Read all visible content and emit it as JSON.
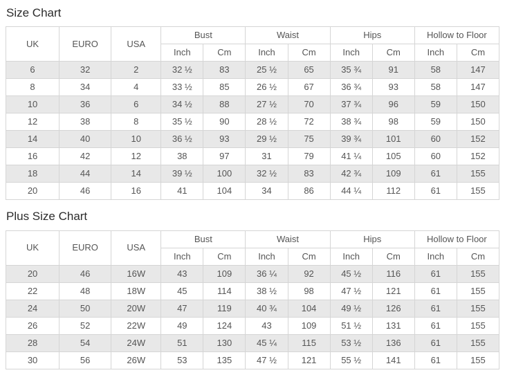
{
  "size_chart": {
    "title": "Size Chart",
    "base_headers": [
      "UK",
      "EURO",
      "USA"
    ],
    "col_groups": [
      "Bust",
      "Waist",
      "Hips",
      "Hollow to Floor"
    ],
    "unit_headers": [
      "Inch",
      "Cm"
    ],
    "rows": [
      [
        "6",
        "32",
        "2",
        "32 ½",
        "83",
        "25 ½",
        "65",
        "35 ¾",
        "91",
        "58",
        "147"
      ],
      [
        "8",
        "34",
        "4",
        "33 ½",
        "85",
        "26 ½",
        "67",
        "36 ¾",
        "93",
        "58",
        "147"
      ],
      [
        "10",
        "36",
        "6",
        "34 ½",
        "88",
        "27 ½",
        "70",
        "37 ¾",
        "96",
        "59",
        "150"
      ],
      [
        "12",
        "38",
        "8",
        "35 ½",
        "90",
        "28 ½",
        "72",
        "38 ¾",
        "98",
        "59",
        "150"
      ],
      [
        "14",
        "40",
        "10",
        "36 ½",
        "93",
        "29 ½",
        "75",
        "39 ¾",
        "101",
        "60",
        "152"
      ],
      [
        "16",
        "42",
        "12",
        "38",
        "97",
        "31",
        "79",
        "41 ¼",
        "105",
        "60",
        "152"
      ],
      [
        "18",
        "44",
        "14",
        "39 ½",
        "100",
        "32 ½",
        "83",
        "42 ¾",
        "109",
        "61",
        "155"
      ],
      [
        "20",
        "46",
        "16",
        "41",
        "104",
        "34",
        "86",
        "44 ¼",
        "112",
        "61",
        "155"
      ]
    ]
  },
  "plus_size_chart": {
    "title": "Plus Size Chart",
    "base_headers": [
      "UK",
      "EURO",
      "USA"
    ],
    "col_groups": [
      "Bust",
      "Waist",
      "Hips",
      "Hollow to Floor"
    ],
    "unit_headers": [
      "Inch",
      "Cm"
    ],
    "rows": [
      [
        "20",
        "46",
        "16W",
        "43",
        "109",
        "36 ¼",
        "92",
        "45 ½",
        "116",
        "61",
        "155"
      ],
      [
        "22",
        "48",
        "18W",
        "45",
        "114",
        "38 ½",
        "98",
        "47 ½",
        "121",
        "61",
        "155"
      ],
      [
        "24",
        "50",
        "20W",
        "47",
        "119",
        "40 ¾",
        "104",
        "49 ½",
        "126",
        "61",
        "155"
      ],
      [
        "26",
        "52",
        "22W",
        "49",
        "124",
        "43",
        "109",
        "51 ½",
        "131",
        "61",
        "155"
      ],
      [
        "28",
        "54",
        "24W",
        "51",
        "130",
        "45 ¼",
        "115",
        "53 ½",
        "136",
        "61",
        "155"
      ],
      [
        "30",
        "56",
        "26W",
        "53",
        "135",
        "47 ½",
        "121",
        "55 ½",
        "141",
        "61",
        "155"
      ]
    ]
  },
  "colors": {
    "stripe": "#e8e8e8",
    "border": "#d5d5d5",
    "text": "#555555",
    "title_text": "#2b2b2b"
  }
}
